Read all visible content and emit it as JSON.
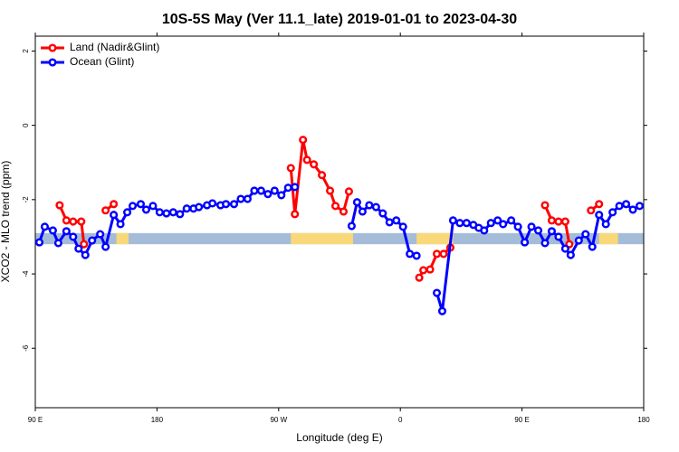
{
  "chart_data": {
    "type": "line",
    "title": "10S-5S May (Ver 11.1_late)   2019-01-01 to 2023-04-30",
    "xlabel": "Longitude (deg E)",
    "ylabel": "XCO2 - MLO trend (ppm)",
    "xlim": [
      90,
      540
    ],
    "ylim": [
      -7.6,
      2.4
    ],
    "xticks": [
      {
        "value": 90,
        "label": "90 E"
      },
      {
        "value": 180,
        "label": "180"
      },
      {
        "value": 270,
        "label": "90 W"
      },
      {
        "value": 360,
        "label": "0"
      },
      {
        "value": 450,
        "label": "90 E"
      },
      {
        "value": 540,
        "label": "180"
      }
    ],
    "yticks": [
      2,
      0,
      -2,
      -4,
      -6
    ],
    "legend": "upper left",
    "land_mask": {
      "y": [
        -3.2,
        -2.9
      ],
      "ocean_color": "#a5bcd9",
      "land_color": "#f8d878",
      "land": [
        [
          150,
          159
        ],
        [
          279,
          325
        ],
        [
          372,
          399
        ],
        [
          507,
          521
        ]
      ]
    },
    "series": [
      {
        "name": "Land (Nadir&Glint)",
        "color": "#ff0000",
        "x": [
          108,
          113,
          118,
          124,
          126,
          null,
          142,
          148,
          null,
          279,
          282,
          288,
          291,
          296,
          302,
          308,
          312,
          318,
          322,
          null,
          374,
          377,
          382,
          387,
          392,
          397,
          null,
          467,
          472,
          477,
          482,
          485,
          null,
          501,
          507
        ],
        "values": [
          -2.15,
          -2.56,
          -2.59,
          -2.59,
          -3.2,
          null,
          -2.29,
          -2.12,
          null,
          -1.15,
          -2.39,
          -0.39,
          -0.93,
          -1.05,
          -1.34,
          -1.76,
          -2.17,
          -2.32,
          -1.78,
          null,
          -4.1,
          -3.9,
          -3.88,
          -3.46,
          -3.46,
          -3.29,
          null,
          -2.15,
          -2.56,
          -2.59,
          -2.59,
          -3.2,
          null,
          -2.29,
          -2.12
        ]
      },
      {
        "name": "Ocean (Glint)",
        "color": "#0000ff",
        "x": [
          93,
          97,
          103,
          107,
          113,
          118,
          122,
          127,
          132,
          138,
          142,
          148,
          153,
          158,
          162,
          168,
          172,
          177,
          182,
          187,
          192,
          197,
          202,
          207,
          211,
          217,
          221,
          227,
          231,
          237,
          242,
          247,
          252,
          257,
          262,
          267,
          272,
          277,
          282,
          null,
          324,
          328,
          332,
          337,
          342,
          347,
          352,
          357,
          362,
          367,
          372,
          null,
          387,
          391,
          399,
          404,
          409,
          414,
          418,
          422,
          427,
          432,
          436,
          442,
          447,
          452,
          457,
          462,
          467,
          472,
          477,
          482,
          486,
          492,
          497,
          502,
          507,
          512,
          517,
          522,
          527,
          532,
          537
        ],
        "values": [
          -3.15,
          -2.73,
          -2.83,
          -3.17,
          -2.85,
          -3.0,
          -3.32,
          -3.49,
          -3.1,
          -2.93,
          -3.27,
          -2.41,
          -2.66,
          -2.34,
          -2.17,
          -2.12,
          -2.27,
          -2.17,
          -2.34,
          -2.37,
          -2.34,
          -2.39,
          -2.24,
          -2.24,
          -2.2,
          -2.15,
          -2.1,
          -2.15,
          -2.12,
          -2.12,
          -1.98,
          -1.98,
          -1.76,
          -1.76,
          -1.85,
          -1.76,
          -1.88,
          -1.68,
          -1.66,
          null,
          -2.71,
          -2.07,
          -2.32,
          -2.15,
          -2.2,
          -2.37,
          -2.61,
          -2.56,
          -2.73,
          -3.46,
          -3.51,
          null,
          -4.51,
          -5.0,
          -2.56,
          -2.63,
          -2.63,
          -2.68,
          -2.76,
          -2.83,
          -2.63,
          -2.56,
          -2.66,
          -2.56,
          -2.73,
          -3.15,
          -2.73,
          -2.83,
          -3.17,
          -2.85,
          -3.0,
          -3.32,
          -3.49,
          -3.1,
          -2.93,
          -3.27,
          -2.41,
          -2.66,
          -2.34,
          -2.17,
          -2.12,
          -2.27,
          -2.17
        ]
      }
    ]
  }
}
